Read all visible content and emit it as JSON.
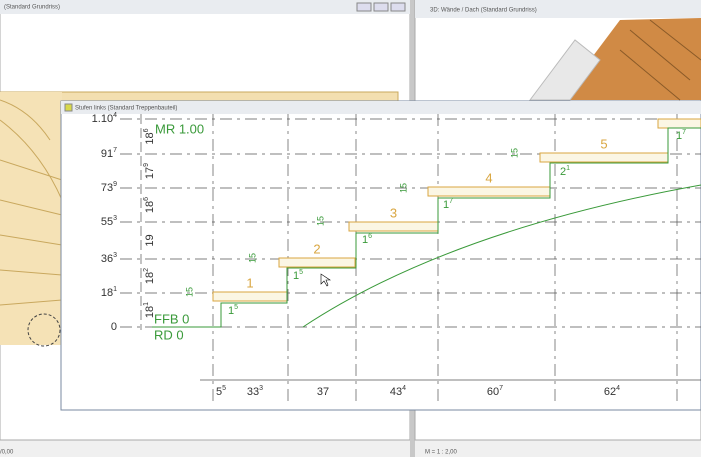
{
  "windows": {
    "left_title": "(Standard Grundriss)",
    "right_title": "3D: Wände / Dach (Standard Grundriss)",
    "front_title": "Stufen links (Standard Treppenbauteil)"
  },
  "levels": [
    {
      "main": "1.10",
      "sup": "4"
    },
    {
      "main": "91",
      "sup": "7"
    },
    {
      "main": "73",
      "sup": "9"
    },
    {
      "main": "55",
      "sup": "3"
    },
    {
      "main": "36",
      "sup": "3"
    },
    {
      "main": "18",
      "sup": "1"
    },
    {
      "main": "0"
    }
  ],
  "risers": [
    {
      "main": "18",
      "sup": "6"
    },
    {
      "main": "17",
      "sup": "9"
    },
    {
      "main": "18",
      "sup": "6"
    },
    {
      "main": "19"
    },
    {
      "main": "18",
      "sup": "2"
    },
    {
      "main": "18",
      "sup": "1"
    }
  ],
  "steps": [
    "1",
    "2",
    "3",
    "4",
    "5"
  ],
  "labels": {
    "mr": "MR 1.00",
    "ffb": "FFB 0",
    "rd": "RD 0"
  },
  "heights": [
    "15",
    "15",
    "15",
    "15",
    "15"
  ],
  "depths": [
    {
      "main": "1",
      "sup": "5"
    },
    {
      "main": "1",
      "sup": "5"
    },
    {
      "main": "1",
      "sup": "6"
    },
    {
      "main": "1",
      "sup": "7"
    },
    {
      "main": "2",
      "sup": "1"
    },
    {
      "main": "1",
      "sup": "7"
    }
  ],
  "dims": [
    {
      "main": "5",
      "sup": "5"
    },
    {
      "main": "33",
      "sup": "3"
    },
    {
      "main": "37"
    },
    {
      "main": "43",
      "sup": "4"
    },
    {
      "main": "60",
      "sup": "7"
    },
    {
      "main": "62",
      "sup": "4"
    }
  ],
  "status": {
    "left": "/0,00",
    "right": "M = 1 : 2,00"
  }
}
